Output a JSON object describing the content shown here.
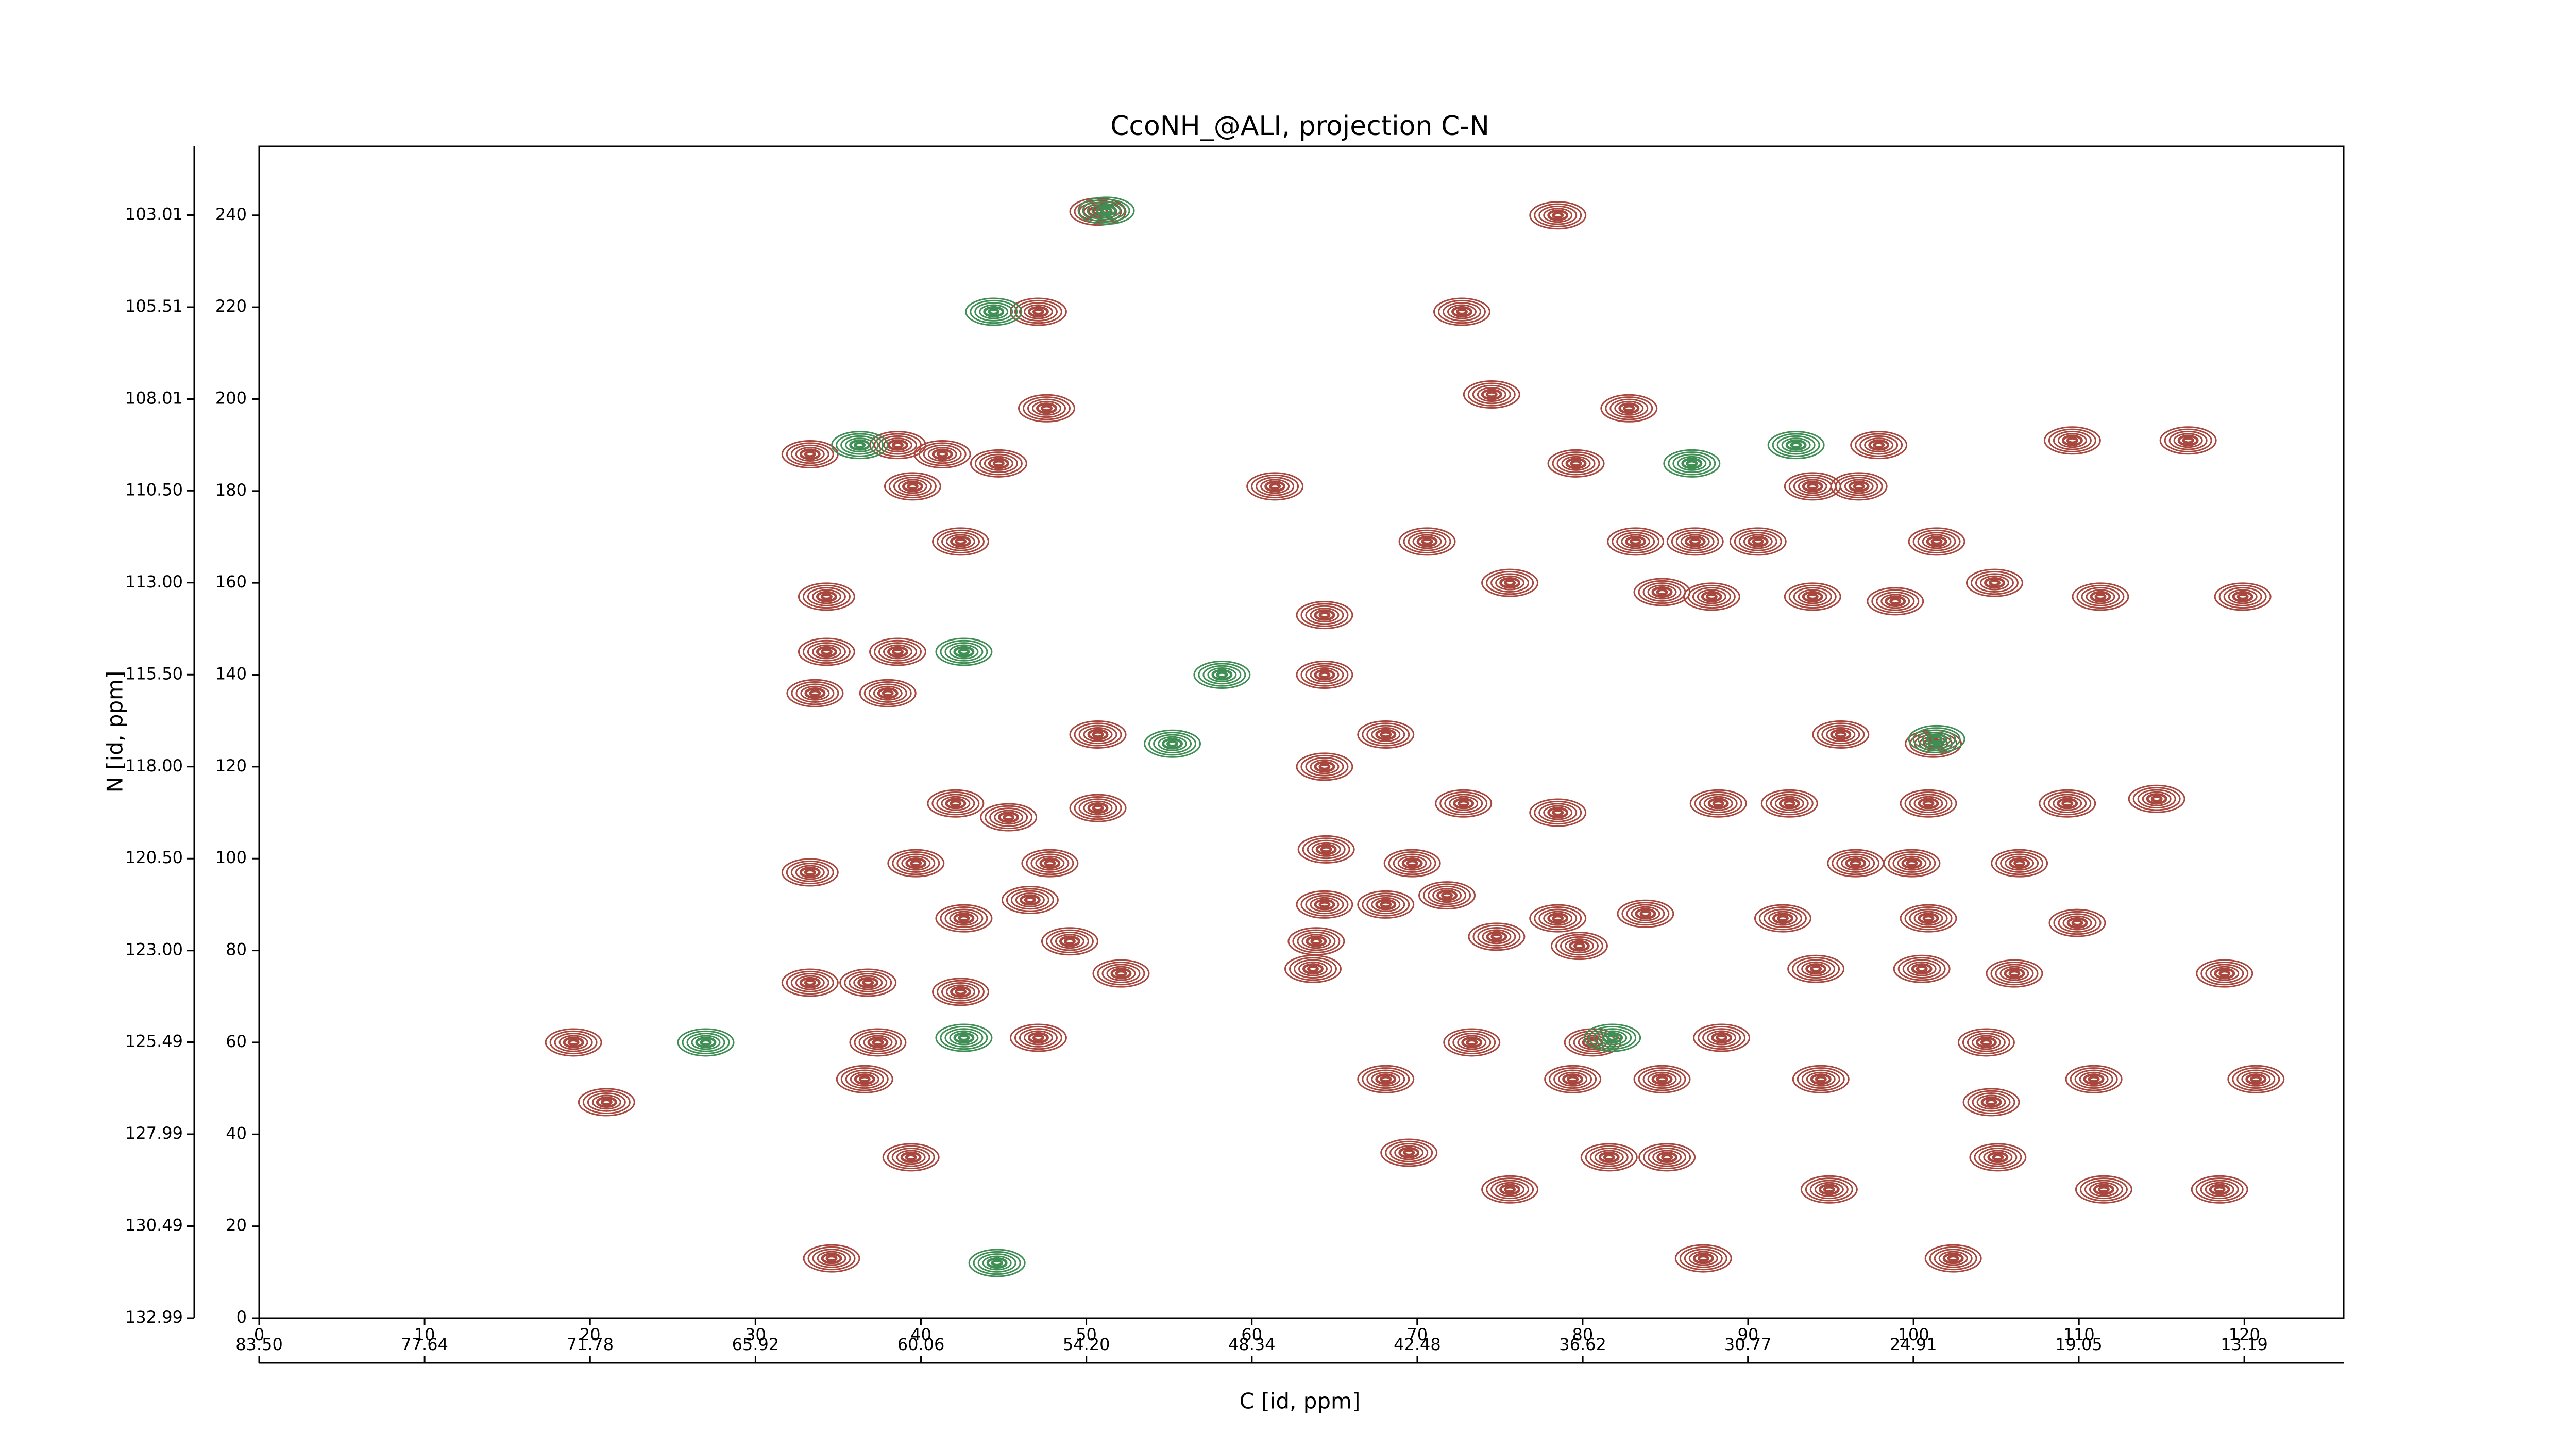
{
  "chart_data": {
    "type": "contour",
    "title": "CcoNH_@ALI, projection C-N",
    "xlabel": "C [id, ppm]",
    "ylabel": "N [id, ppm]",
    "xlim": [
      0,
      126
    ],
    "ylim": [
      0,
      255
    ],
    "xticks": [
      0,
      10,
      20,
      30,
      40,
      50,
      60,
      70,
      80,
      90,
      100,
      110,
      120
    ],
    "yticks": [
      0,
      20,
      40,
      60,
      80,
      100,
      120,
      140,
      160,
      180,
      200,
      220,
      240
    ],
    "x2lim": [
      83.5,
      9.67
    ],
    "x2ticks": [
      {
        "value": 83.5,
        "label": "83.50"
      },
      {
        "value": 77.64,
        "label": "77.64"
      },
      {
        "value": 71.78,
        "label": "71.78"
      },
      {
        "value": 65.92,
        "label": "65.92"
      },
      {
        "value": 60.06,
        "label": "60.06"
      },
      {
        "value": 54.2,
        "label": "54.20"
      },
      {
        "value": 48.34,
        "label": "48.34"
      },
      {
        "value": 42.48,
        "label": "42.48"
      },
      {
        "value": 36.62,
        "label": "36.62"
      },
      {
        "value": 30.77,
        "label": "30.77"
      },
      {
        "value": 24.91,
        "label": "24.91"
      },
      {
        "value": 19.05,
        "label": "19.05"
      },
      {
        "value": 13.19,
        "label": "13.19"
      }
    ],
    "y2lim": [
      132.99,
      101.14
    ],
    "y2ticks": [
      {
        "value": 132.99,
        "label": "132.99"
      },
      {
        "value": 130.49,
        "label": "130.49"
      },
      {
        "value": 127.99,
        "label": "127.99"
      },
      {
        "value": 125.49,
        "label": "125.49"
      },
      {
        "value": 123.0,
        "label": "123.00"
      },
      {
        "value": 120.5,
        "label": "120.50"
      },
      {
        "value": 118.0,
        "label": "118.00"
      },
      {
        "value": 115.5,
        "label": "115.50"
      },
      {
        "value": 113.0,
        "label": "113.00"
      },
      {
        "value": 110.5,
        "label": "110.50"
      },
      {
        "value": 108.01,
        "label": "108.01"
      },
      {
        "value": 105.51,
        "label": "105.51"
      },
      {
        "value": 103.01,
        "label": "103.01"
      }
    ],
    "series": [
      {
        "color": "#a8473d",
        "x": [
          50.7,
          78.5,
          47.1,
          72.7,
          47.6,
          74.5,
          82.8,
          33.3,
          38.6,
          41.3,
          44.7,
          39.5,
          61.4,
          79.6,
          93.9,
          96.7,
          97.9,
          109.6,
          116.6,
          42.4,
          70.6,
          83.2,
          86.8,
          90.6,
          101.4,
          34.3,
          75.6,
          84.8,
          87.8,
          93.9,
          98.9,
          104.9,
          111.3,
          119.9,
          34.3,
          38.6,
          33.6,
          38.0,
          64.4,
          64.4,
          64.4,
          50.7,
          68.1,
          95.6,
          101.2,
          42.1,
          45.3,
          50.7,
          72.8,
          78.5,
          88.2,
          92.5,
          100.9,
          109.3,
          114.7,
          33.3,
          39.7,
          47.8,
          64.5,
          69.7,
          96.5,
          99.9,
          106.4,
          64.4,
          68.1,
          71.8,
          42.6,
          46.6,
          49.0,
          78.5,
          83.8,
          92.1,
          100.9,
          109.9,
          63.9,
          74.8,
          79.8,
          63.7,
          33.3,
          36.8,
          42.4,
          52.1,
          94.1,
          100.5,
          106.1,
          118.8,
          19.0,
          37.4,
          47.1,
          73.3,
          80.6,
          88.4,
          104.4,
          21.0,
          36.6,
          68.1,
          79.4,
          84.8,
          94.4,
          104.7,
          110.9,
          120.7,
          39.4,
          69.5,
          81.6,
          85.1,
          105.1,
          75.6,
          94.9,
          111.5,
          118.5,
          34.6,
          87.3,
          102.4
        ],
        "values": [
          240.8,
          240,
          219,
          219,
          198,
          201,
          198,
          188,
          190,
          188,
          186,
          181,
          181,
          186,
          181,
          181,
          190,
          191,
          191,
          169,
          169,
          169,
          169,
          169,
          169,
          157,
          160,
          158,
          157,
          157,
          156,
          160,
          157,
          157,
          145,
          145,
          136,
          136,
          153,
          140,
          120,
          127,
          127,
          127,
          125,
          112,
          109,
          111,
          112,
          110,
          112,
          112,
          112,
          112,
          113,
          97,
          99,
          99,
          102,
          99,
          99,
          99,
          99,
          90,
          90,
          92,
          87,
          91,
          82,
          87,
          88,
          87,
          87,
          86,
          82,
          83,
          81,
          76,
          73,
          73,
          71,
          75,
          76,
          76,
          75,
          75,
          60,
          60,
          61,
          60,
          60,
          61,
          60,
          47,
          52,
          52,
          52,
          52,
          52,
          47,
          52,
          52,
          35,
          36,
          35,
          35,
          35,
          28,
          28,
          28,
          28,
          13,
          13,
          13
        ]
      },
      {
        "color": "#3f8f55",
        "x": [
          51.2,
          44.4,
          36.3,
          92.9,
          58.2,
          55.2,
          42.6,
          101.4,
          86.6,
          27.0,
          42.6,
          81.8,
          44.6
        ],
        "values": [
          241,
          219,
          190,
          190,
          140,
          125,
          145,
          126,
          186,
          60,
          61,
          61,
          12
        ]
      }
    ]
  }
}
